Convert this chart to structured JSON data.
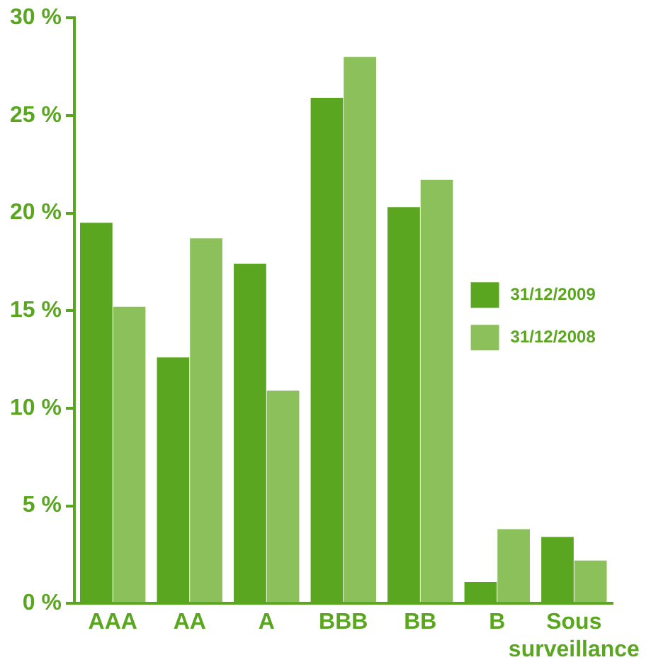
{
  "chart_data": {
    "type": "bar",
    "categories": [
      "AAA",
      "AA",
      "A",
      "BBB",
      "BB",
      "B",
      "Sous surveillance"
    ],
    "series": [
      {
        "name": "31/12/2009",
        "color": "#5aa620",
        "values": [
          19.5,
          12.6,
          17.4,
          25.9,
          20.3,
          1.1,
          3.4
        ]
      },
      {
        "name": "31/12/2008",
        "color": "#8cc05a",
        "values": [
          15.2,
          18.7,
          10.9,
          28.0,
          21.7,
          3.8,
          2.2
        ]
      }
    ],
    "ylim": [
      0,
      30
    ],
    "yticks": [
      {
        "value": 0,
        "label": "0 %"
      },
      {
        "value": 5,
        "label": "5 %"
      },
      {
        "value": 10,
        "label": "10 %"
      },
      {
        "value": 15,
        "label": "15 %"
      },
      {
        "value": 20,
        "label": "20 %"
      },
      {
        "value": 25,
        "label": "25 %"
      },
      {
        "value": 30,
        "label": "30 %"
      }
    ],
    "grid": false,
    "legend": "right"
  }
}
